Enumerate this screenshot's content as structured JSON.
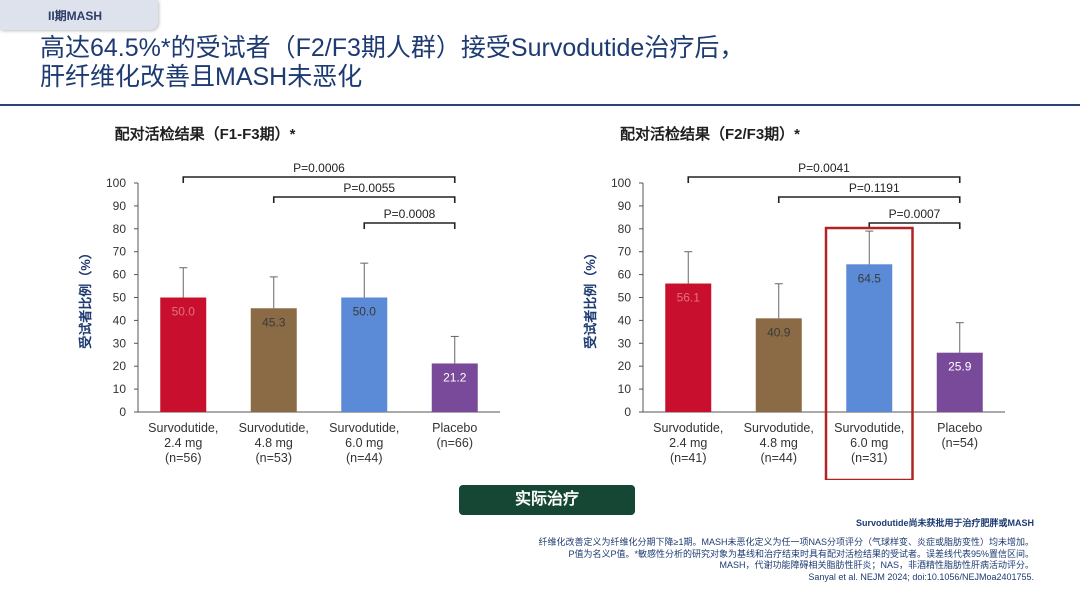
{
  "tag": "II期MASH",
  "title": {
    "line1": "高达64.5%*的受试者（F2/F3期人群）接受Survodutide治疗后，",
    "line2": "肝纤维化改善且MASH未恶化"
  },
  "action_button": "实际治疗",
  "disclaimer": "Survodutide尚未获批用于治疗肥胖或MASH",
  "footnotes": [
    "纤维化改善定义为纤维化分期下降≥1期。MASH未恶化定义为任一项NAS分项评分（气球样变、炎症或脂肪变性）均未增加。",
    "P值为名义P值。*敏感性分析的研究对象为基线和治疗结束时具有配对活检结果的受试者。误差线代表95%置信区间。",
    "MASH，代谢功能障碍相关脂肪性肝炎；NAS，非酒精性脂肪性肝病活动评分。",
    "Sanyal et al. NEJM 2024; doi:10.1056/NEJMoa2401755."
  ],
  "chart_data": [
    {
      "type": "bar",
      "title": "配对活检结果（F1-F3期）*",
      "ylabel": "受试者比例（%）",
      "ylim": [
        0,
        100
      ],
      "yticks": [
        0,
        10,
        20,
        30,
        40,
        50,
        60,
        70,
        80,
        90,
        100
      ],
      "categories": [
        [
          "Survodutide,",
          "2.4 mg",
          "(n=56)"
        ],
        [
          "Survodutide,",
          "4.8 mg",
          "(n=53)"
        ],
        [
          "Survodutide,",
          "6.0 mg",
          "(n=44)"
        ],
        [
          "Placebo",
          "(n=66)"
        ]
      ],
      "values": [
        50.0,
        45.3,
        50.0,
        21.2
      ],
      "labels": [
        "50.0",
        "45.3",
        "50.0",
        "21.2"
      ],
      "error_upper": [
        63,
        59,
        65,
        33
      ],
      "colors": [
        "#c8102e",
        "#8b6a46",
        "#5b8bd6",
        "#7a4a9a"
      ],
      "label_colors": [
        "#e07080",
        "#3a3a3a",
        "#3a3a3a",
        "#ffffff"
      ],
      "comparisons": [
        {
          "from": 0,
          "to": 3,
          "p": "P=0.0006"
        },
        {
          "from": 1,
          "to": 3,
          "p": "P=0.0055"
        },
        {
          "from": 2,
          "to": 3,
          "p": "P=0.0008"
        }
      ],
      "highlight_index": null
    },
    {
      "type": "bar",
      "title": "配对活检结果（F2/F3期）*",
      "ylabel": "受试者比例（%）",
      "ylim": [
        0,
        100
      ],
      "yticks": [
        0,
        10,
        20,
        30,
        40,
        50,
        60,
        70,
        80,
        90,
        100
      ],
      "categories": [
        [
          "Survodutide,",
          "2.4 mg",
          "(n=41)"
        ],
        [
          "Survodutide,",
          "4.8 mg",
          "(n=44)"
        ],
        [
          "Survodutide,",
          "6.0 mg",
          "(n=31)"
        ],
        [
          "Placebo",
          "(n=54)"
        ]
      ],
      "values": [
        56.1,
        40.9,
        64.5,
        25.9
      ],
      "labels": [
        "56.1",
        "40.9",
        "64.5",
        "25.9"
      ],
      "error_upper": [
        70,
        56,
        79,
        39
      ],
      "colors": [
        "#c8102e",
        "#8b6a46",
        "#5b8bd6",
        "#7a4a9a"
      ],
      "label_colors": [
        "#e07080",
        "#3a3a3a",
        "#3a3a3a",
        "#ffffff"
      ],
      "comparisons": [
        {
          "from": 0,
          "to": 3,
          "p": "P=0.0041"
        },
        {
          "from": 1,
          "to": 3,
          "p": "P=0.1191"
        },
        {
          "from": 2,
          "to": 3,
          "p": "P=0.0007"
        }
      ],
      "highlight_index": 2,
      "highlight_color": "#b22222"
    }
  ]
}
